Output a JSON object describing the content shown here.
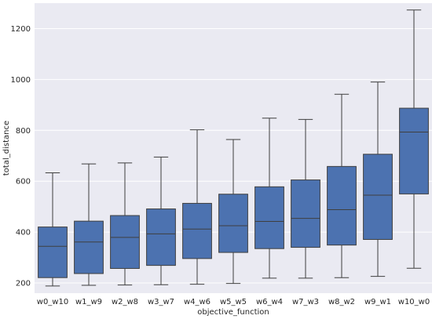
{
  "chart_data": {
    "type": "box",
    "title": "",
    "xlabel": "objective_function",
    "ylabel": "total_distance",
    "ylim": [
      160,
      1300
    ],
    "yticks": [
      200,
      400,
      600,
      800,
      1000,
      1200
    ],
    "grid": true,
    "colors": {
      "plot_bg": "#EAEAF2",
      "box_fill": "#4C72B0",
      "line": "#3f3f3f",
      "grid": "#ffffff",
      "text": "#262626"
    },
    "categories": [
      "w0_w10",
      "w1_w9",
      "w2_w8",
      "w3_w7",
      "w4_w6",
      "w5_w5",
      "w6_w4",
      "w7_w3",
      "w8_w2",
      "w9_w1",
      "w10_w0"
    ],
    "boxes": [
      {
        "min": 188,
        "q1": 221,
        "median": 344,
        "q3": 420,
        "max": 633
      },
      {
        "min": 191,
        "q1": 237,
        "median": 361,
        "q3": 443,
        "max": 668
      },
      {
        "min": 192,
        "q1": 257,
        "median": 379,
        "q3": 465,
        "max": 672
      },
      {
        "min": 193,
        "q1": 269,
        "median": 393,
        "q3": 491,
        "max": 695
      },
      {
        "min": 195,
        "q1": 296,
        "median": 412,
        "q3": 513,
        "max": 802
      },
      {
        "min": 198,
        "q1": 320,
        "median": 425,
        "q3": 549,
        "max": 764
      },
      {
        "min": 219,
        "q1": 335,
        "median": 442,
        "q3": 578,
        "max": 848
      },
      {
        "min": 219,
        "q1": 340,
        "median": 454,
        "q3": 605,
        "max": 843
      },
      {
        "min": 221,
        "q1": 349,
        "median": 488,
        "q3": 658,
        "max": 942
      },
      {
        "min": 226,
        "q1": 371,
        "median": 545,
        "q3": 706,
        "max": 990
      },
      {
        "min": 258,
        "q1": 550,
        "median": 793,
        "q3": 887,
        "max": 1273
      }
    ]
  }
}
